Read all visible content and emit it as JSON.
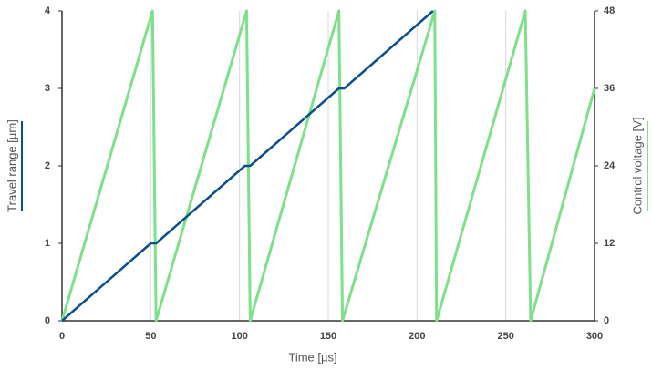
{
  "chart_data": {
    "type": "line",
    "xlabel": "Time [µs]",
    "ylabel": "Travel range [µm]",
    "y2label": "Control voltage [V]",
    "xlim": [
      0,
      300
    ],
    "xticks": [
      0,
      50,
      100,
      150,
      200,
      250,
      300
    ],
    "ylim": [
      0,
      4
    ],
    "yticks": [
      0,
      1,
      2,
      3,
      4
    ],
    "y2lim": [
      0,
      48
    ],
    "y2ticks": [
      0,
      12,
      24,
      36,
      48
    ],
    "grid": true,
    "series": [
      {
        "name": "Travel range [µm]",
        "color": "#0b4f8a",
        "x": [
          0,
          50,
          53,
          103,
          106,
          156,
          159,
          209
        ],
        "values": [
          0,
          1,
          1,
          2,
          2,
          3,
          3,
          4
        ]
      },
      {
        "name": "Control voltage [V]",
        "color": "#7ee089",
        "axis": "y2",
        "x": [
          0,
          51,
          53,
          104,
          106,
          156,
          158,
          210,
          211,
          261,
          264,
          300
        ],
        "values": [
          0,
          48,
          0,
          48,
          0,
          48,
          0,
          48,
          0,
          48,
          0,
          36
        ]
      }
    ]
  }
}
